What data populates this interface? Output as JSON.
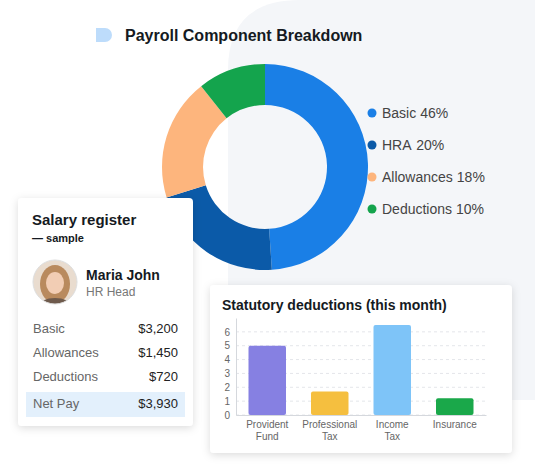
{
  "chart_data": [
    {
      "type": "pie",
      "title": "Payroll Component Breakdown",
      "categories": [
        "Basic",
        "HRA",
        "Allowances",
        "Deductions"
      ],
      "values": [
        46,
        20,
        18,
        10
      ],
      "value_labels": [
        "46%",
        "20%",
        "18%",
        "10%"
      ],
      "colors": [
        "#1a7fe6",
        "#0b5aa8",
        "#fdb57d",
        "#14a44d"
      ],
      "legend": "right"
    },
    {
      "type": "bar",
      "title": "Statutory deductions (this month)",
      "categories": [
        "Provident Fund",
        "Professional Tax",
        "Income Tax",
        "Insurance"
      ],
      "values": [
        5.0,
        1.7,
        6.5,
        1.2
      ],
      "colors": [
        "#8680e2",
        "#f5bf3f",
        "#7ec4f8",
        "#1aa84a"
      ],
      "ylim": [
        0,
        7
      ],
      "yticks": [
        0,
        1,
        2,
        3,
        4,
        5,
        6
      ],
      "grid": true
    }
  ],
  "salary_register": {
    "title": "Salary register",
    "subtitle": "— sample",
    "employee": {
      "name": "Maria John",
      "role": "HR Head"
    },
    "rows": [
      {
        "label": "Basic",
        "amount": "$3,200"
      },
      {
        "label": "Allowances",
        "amount": "$1,450"
      },
      {
        "label": "Deductions",
        "amount": "$720"
      },
      {
        "label": "Net Pay",
        "amount": "$3,930"
      }
    ]
  }
}
